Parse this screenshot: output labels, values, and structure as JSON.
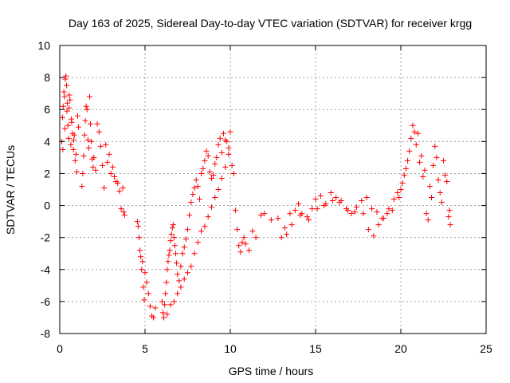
{
  "chart_data": {
    "type": "scatter",
    "title": "Day 163 of 2025, Sidereal Day-to-day VTEC variation (SDTVAR) for receiver krgg",
    "xlabel": "GPS time / hours",
    "ylabel": "SDTVAR / TECUs",
    "xlim": [
      0,
      25
    ],
    "ylim": [
      -8,
      10
    ],
    "grid": true,
    "marker": "+",
    "color": "#ff0000",
    "x_ticks": [
      0,
      5,
      10,
      15,
      20,
      25
    ],
    "y_ticks": [
      -8,
      -6,
      -4,
      -2,
      0,
      2,
      4,
      6,
      8,
      10
    ],
    "series": [
      {
        "name": "SDTVAR",
        "x": [
          0.12,
          0.16,
          0.2,
          0.24,
          0.28,
          0.32,
          0.36,
          0.4,
          0.44,
          0.48,
          0.52,
          0.56,
          0.6,
          0.65,
          0.7,
          0.75,
          0.8,
          0.85,
          0.9,
          0.95,
          1.0,
          1.05,
          1.1,
          0.18,
          0.3,
          0.42,
          0.55,
          0.68,
          0.82,
          1.3,
          1.35,
          1.4,
          1.45,
          1.5,
          1.55,
          1.6,
          1.65,
          1.7,
          1.75,
          1.8,
          1.85,
          1.9,
          1.95,
          2.0,
          2.1,
          2.2,
          2.3,
          2.4,
          2.5,
          2.6,
          2.7,
          2.8,
          2.9,
          3.0,
          3.1,
          3.2,
          3.3,
          3.4,
          3.5,
          3.6,
          3.7,
          3.75,
          3.8,
          4.55,
          4.6,
          4.65,
          4.7,
          4.75,
          4.8,
          4.85,
          4.9,
          4.95,
          5.0,
          5.1,
          5.2,
          5.3,
          5.4,
          5.5,
          5.6,
          6.0,
          6.05,
          6.1,
          6.15,
          6.2,
          6.25,
          6.3,
          6.35,
          6.4,
          6.45,
          6.5,
          6.55,
          6.6,
          6.65,
          6.7,
          6.75,
          6.8,
          6.85,
          6.9,
          7.0,
          7.1,
          7.2,
          7.3,
          7.4,
          7.5,
          7.6,
          7.7,
          7.8,
          7.9,
          8.0,
          8.1,
          8.2,
          8.3,
          8.4,
          8.5,
          8.6,
          8.7,
          8.8,
          8.9,
          9.0,
          9.1,
          9.2,
          9.3,
          9.4,
          9.5,
          9.6,
          9.7,
          9.8,
          9.9,
          10.0,
          6.3,
          6.5,
          6.7,
          6.9,
          7.1,
          7.3,
          7.5,
          7.7,
          7.9,
          8.1,
          8.3,
          8.5,
          8.7,
          8.9,
          9.1,
          9.3,
          9.5,
          9.7,
          9.9,
          10.1,
          10.2,
          10.3,
          10.4,
          10.5,
          10.6,
          10.7,
          10.8,
          10.9,
          11.1,
          11.3,
          11.5,
          11.8,
          12.0,
          12.4,
          12.8,
          13.0,
          13.2,
          13.5,
          13.8,
          14.0,
          14.2,
          14.5,
          14.8,
          15.0,
          15.3,
          15.6,
          15.9,
          16.2,
          16.5,
          16.8,
          17.1,
          17.4,
          17.7,
          18.0,
          18.3,
          18.6,
          18.9,
          19.2,
          19.5,
          19.8,
          13.3,
          13.6,
          14.1,
          14.6,
          15.1,
          15.5,
          16.0,
          16.4,
          16.9,
          17.3,
          17.8,
          18.1,
          18.4,
          18.7,
          19.0,
          19.3,
          19.6,
          19.9,
          20.0,
          20.1,
          20.2,
          20.3,
          20.4,
          20.5,
          20.6,
          20.7,
          20.8,
          20.9,
          21.0,
          21.1,
          21.2,
          21.3,
          21.4,
          21.5,
          21.6,
          21.7,
          21.8,
          21.9,
          22.0,
          22.1,
          22.2,
          22.3,
          22.4,
          22.5,
          22.6,
          22.7,
          22.8,
          22.85,
          22.9
        ],
        "y": [
          4.0,
          5.5,
          6.2,
          7.1,
          6.8,
          7.9,
          8.1,
          7.5,
          6.4,
          5.0,
          4.2,
          6.9,
          6.6,
          3.8,
          5.2,
          4.5,
          3.5,
          4.4,
          2.8,
          3.2,
          2.1,
          5.6,
          4.9,
          3.5,
          4.8,
          5.9,
          6.1,
          5.4,
          4.1,
          1.2,
          2.0,
          3.1,
          4.4,
          5.3,
          6.2,
          6.0,
          4.1,
          3.6,
          6.8,
          5.1,
          4.0,
          2.9,
          2.4,
          3.0,
          2.2,
          5.1,
          4.6,
          3.7,
          2.5,
          1.1,
          3.8,
          2.7,
          3.2,
          2.0,
          2.4,
          1.8,
          1.5,
          1.4,
          0.9,
          -0.2,
          1.1,
          -0.4,
          -0.6,
          -1.0,
          -1.3,
          -2.0,
          -2.8,
          -3.2,
          -4.0,
          -3.5,
          -5.1,
          -5.9,
          -4.2,
          -4.8,
          -5.5,
          -6.3,
          -6.9,
          -7.0,
          -6.4,
          -6.0,
          -6.7,
          -7.0,
          -6.2,
          -5.5,
          -4.8,
          -4.0,
          -3.5,
          -3.1,
          -2.8,
          -2.2,
          -1.8,
          -1.4,
          -1.2,
          -2.0,
          -2.5,
          -3.0,
          -3.6,
          -4.3,
          -4.7,
          -3.8,
          -3.0,
          -2.6,
          -2.1,
          -1.5,
          -0.6,
          0.2,
          0.7,
          1.1,
          1.6,
          1.2,
          0.4,
          2.0,
          2.3,
          2.8,
          3.4,
          3.1,
          2.1,
          1.7,
          1.9,
          2.6,
          3.0,
          3.8,
          4.2,
          3.3,
          4.5,
          4.1,
          4.0,
          3.6,
          4.6,
          -6.8,
          -6.2,
          -6.0,
          -5.5,
          -5.1,
          -4.6,
          -4.2,
          -3.8,
          -3.0,
          -2.3,
          -1.6,
          -1.3,
          -0.7,
          -0.1,
          0.5,
          1.0,
          1.7,
          2.4,
          3.2,
          2.5,
          2.0,
          -0.3,
          -1.5,
          -2.5,
          -2.9,
          -2.3,
          -2.0,
          -2.4,
          -2.8,
          -1.6,
          -2.0,
          -0.6,
          -0.5,
          -0.9,
          -0.8,
          -2.0,
          -1.4,
          -0.5,
          -0.3,
          0.1,
          -0.5,
          -0.7,
          -0.2,
          0.4,
          0.6,
          0.1,
          0.8,
          0.5,
          0.3,
          -0.2,
          -0.5,
          -0.1,
          0.3,
          0.5,
          -0.2,
          -0.4,
          -0.8,
          -0.5,
          -0.3,
          0.8,
          -1.8,
          -1.2,
          -0.6,
          -0.9,
          -0.2,
          0.0,
          0.3,
          0.2,
          -0.3,
          -0.4,
          -0.5,
          -1.5,
          -1.9,
          -1.2,
          -0.8,
          -0.2,
          0.4,
          0.5,
          1.0,
          1.4,
          1.9,
          2.3,
          2.8,
          3.4,
          4.2,
          5.0,
          4.6,
          3.8,
          4.5,
          2.7,
          3.1,
          1.8,
          2.2,
          -0.5,
          -0.9,
          1.2,
          0.5,
          2.5,
          3.7,
          3.0,
          1.6,
          0.8,
          0.2,
          2.8,
          1.9,
          1.5,
          -0.7,
          -0.3,
          -1.2
        ]
      }
    ]
  }
}
